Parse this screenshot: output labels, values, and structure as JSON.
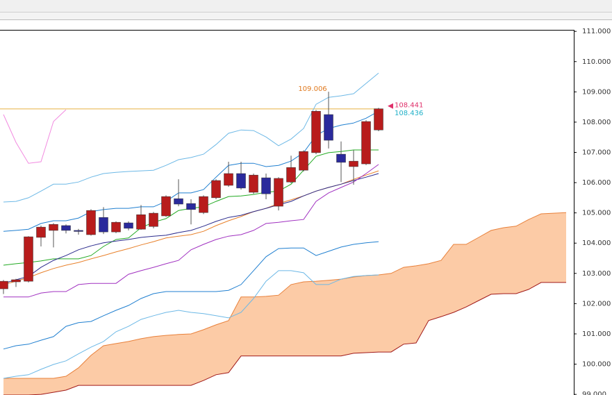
{
  "chart_data": {
    "type": "candlestick",
    "ylim": [
      98.98,
      111.05
    ],
    "yticks": [
      {
        "value": 99,
        "label": "99.000"
      },
      {
        "value": 100,
        "label": "100.000"
      },
      {
        "value": 101,
        "label": "101.000"
      },
      {
        "value": 102,
        "label": "102.000"
      },
      {
        "value": 103,
        "label": "103.000"
      },
      {
        "value": 104,
        "label": "104.000"
      },
      {
        "value": 105,
        "label": "105.000"
      },
      {
        "value": 106,
        "label": "106.000"
      },
      {
        "value": 107,
        "label": "107.000"
      },
      {
        "value": 108,
        "label": "108.000"
      },
      {
        "value": 109,
        "label": "109.000"
      },
      {
        "value": 110,
        "label": "110.000"
      },
      {
        "value": 111,
        "label": "111.000"
      }
    ],
    "up_color": "#b81c1c",
    "down_color": "#2a2a9c",
    "open": [
      102.49,
      102.72,
      102.74,
      104.19,
      104.42,
      104.58,
      104.42,
      104.28,
      104.85,
      104.37,
      104.67,
      104.46,
      104.55,
      104.9,
      105.47,
      105.31,
      105.01,
      105.5,
      105.91,
      106.3,
      105.68,
      106.16,
      105.22,
      106.02,
      106.41,
      106.99,
      108.25,
      106.94,
      106.53,
      106.62,
      107.74
    ],
    "high": [
      102.78,
      102.82,
      104.23,
      104.58,
      104.66,
      104.62,
      104.47,
      105.12,
      105.19,
      104.72,
      104.72,
      105.26,
      105.03,
      105.58,
      106.11,
      105.45,
      105.58,
      106.11,
      106.69,
      106.69,
      106.3,
      106.3,
      106.18,
      106.89,
      107.07,
      108.4,
      109.006,
      107.36,
      107.07,
      108.06,
      108.47
    ],
    "low": [
      102.32,
      102.55,
      102.7,
      103.89,
      103.86,
      104.32,
      104.28,
      104.25,
      104.3,
      104.33,
      104.42,
      104.44,
      104.49,
      104.87,
      105.22,
      104.62,
      104.96,
      105.45,
      105.86,
      105.77,
      105.63,
      105.45,
      105.08,
      105.98,
      106.37,
      106.94,
      107.13,
      106.02,
      105.93,
      106.58,
      107.7
    ],
    "close": [
      102.74,
      102.79,
      104.21,
      104.53,
      104.62,
      104.42,
      104.4,
      105.08,
      104.37,
      104.69,
      104.49,
      104.94,
      104.99,
      105.54,
      105.29,
      105.11,
      105.54,
      106.07,
      106.3,
      105.82,
      106.25,
      105.63,
      106.14,
      106.5,
      107.03,
      108.36,
      107.4,
      106.67,
      106.71,
      108.02,
      108.441
    ],
    "cloud": {
      "fill": "#fccba6",
      "upper_color": "#e8803a",
      "lower_color": "#a01818",
      "upper": [
        99.53,
        99.53,
        99.53,
        99.53,
        99.53,
        99.6,
        99.88,
        100.29,
        100.61,
        100.68,
        100.75,
        100.84,
        100.91,
        100.95,
        100.98,
        101.0,
        101.14,
        101.3,
        101.44,
        102.22,
        102.22,
        102.24,
        102.28,
        102.63,
        102.72,
        102.74,
        102.77,
        102.81,
        102.88,
        102.93,
        102.95,
        103.0,
        103.2,
        103.25,
        103.32,
        103.43,
        103.96,
        103.96,
        104.19,
        104.42,
        104.51,
        104.56,
        104.78,
        104.97,
        104.99,
        105.01
      ],
      "lower": [
        98.98,
        98.98,
        98.98,
        99.0,
        99.07,
        99.14,
        99.3,
        99.3,
        99.3,
        99.3,
        99.3,
        99.3,
        99.3,
        99.3,
        99.3,
        99.3,
        99.46,
        99.65,
        99.72,
        100.27,
        100.27,
        100.27,
        100.27,
        100.27,
        100.27,
        100.27,
        100.27,
        100.27,
        100.36,
        100.38,
        100.4,
        100.4,
        100.66,
        100.7,
        101.44,
        101.57,
        101.71,
        101.89,
        102.1,
        102.31,
        102.33,
        102.33,
        102.47,
        102.7,
        102.7,
        102.7
      ]
    },
    "lines": [
      {
        "color": "#6cb8e6",
        "values": [
          105.36,
          105.38,
          105.5,
          105.72,
          105.95,
          105.95,
          106.02,
          106.18,
          106.3,
          106.34,
          106.37,
          106.39,
          106.41,
          106.57,
          106.76,
          106.83,
          106.94,
          107.26,
          107.63,
          107.74,
          107.72,
          107.51,
          107.22,
          107.44,
          107.79,
          108.59,
          108.82,
          108.87,
          108.94,
          109.28,
          109.62
        ]
      },
      {
        "color": "#1f7fd0",
        "values": [
          104.39,
          104.42,
          104.46,
          104.65,
          104.74,
          104.74,
          104.83,
          105.04,
          105.11,
          105.15,
          105.15,
          105.2,
          105.2,
          105.38,
          105.66,
          105.66,
          105.77,
          106.18,
          106.57,
          106.64,
          106.64,
          106.53,
          106.57,
          106.71,
          106.99,
          107.56,
          107.79,
          107.9,
          107.97,
          108.13,
          108.36
        ]
      },
      {
        "color": "#1f7fd0",
        "values": [
          100.5,
          100.61,
          100.66,
          100.79,
          100.91,
          101.25,
          101.37,
          101.41,
          101.6,
          101.78,
          101.94,
          102.17,
          102.33,
          102.4,
          102.4,
          102.4,
          102.4,
          102.4,
          102.44,
          102.63,
          103.09,
          103.55,
          103.82,
          103.84,
          103.84,
          103.59,
          103.73,
          103.87,
          103.96,
          104.01,
          104.05
        ]
      },
      {
        "color": "#6cb8e6",
        "values": [
          99.53,
          99.6,
          99.65,
          99.83,
          99.99,
          100.11,
          100.34,
          100.56,
          100.75,
          101.07,
          101.25,
          101.48,
          101.6,
          101.71,
          101.78,
          101.71,
          101.67,
          101.6,
          101.53,
          101.71,
          102.17,
          102.74,
          103.09,
          103.09,
          103.02,
          102.63,
          102.63,
          102.81,
          102.9,
          102.93,
          102.95
        ]
      },
      {
        "color": "#22aa22",
        "values": [
          103.27,
          103.32,
          103.36,
          103.41,
          103.48,
          103.48,
          103.48,
          103.59,
          103.89,
          104.12,
          104.17,
          104.51,
          104.69,
          104.81,
          105.08,
          105.15,
          105.2,
          105.38,
          105.54,
          105.56,
          105.61,
          105.68,
          105.72,
          105.95,
          106.41,
          106.87,
          106.99,
          107.03,
          107.08,
          107.08,
          107.08
        ]
      },
      {
        "color": "#e8802a",
        "values": [
          102.63,
          102.74,
          102.86,
          103.02,
          103.16,
          103.27,
          103.36,
          103.48,
          103.59,
          103.71,
          103.82,
          103.94,
          104.05,
          104.17,
          104.23,
          104.28,
          104.39,
          104.58,
          104.74,
          104.88,
          105.04,
          105.15,
          105.31,
          105.43,
          105.56,
          105.72,
          105.84,
          105.95,
          106.11,
          106.25,
          106.39
        ]
      },
      {
        "color": "#2a2a8c",
        "values": [
          102.67,
          102.79,
          102.9,
          103.2,
          103.43,
          103.59,
          103.78,
          103.91,
          104.01,
          104.07,
          104.12,
          104.19,
          104.23,
          104.26,
          104.35,
          104.42,
          104.56,
          104.72,
          104.85,
          104.92,
          105.04,
          105.15,
          105.27,
          105.38,
          105.56,
          105.72,
          105.84,
          105.95,
          106.07,
          106.18,
          106.3
        ]
      },
      {
        "color": "#a030c0",
        "values": [
          102.22,
          102.22,
          102.22,
          102.35,
          102.4,
          102.4,
          102.63,
          102.67,
          102.67,
          102.67,
          102.97,
          103.09,
          103.2,
          103.32,
          103.43,
          103.78,
          103.96,
          104.12,
          104.23,
          104.28,
          104.42,
          104.65,
          104.69,
          104.74,
          104.78,
          105.38,
          105.66,
          105.84,
          106.02,
          106.3,
          106.6
        ]
      },
      {
        "color": "#f28ae0",
        "values": [
          108.25,
          107.33,
          106.64,
          106.69,
          108.02,
          108.41,
          null,
          null,
          null,
          null,
          null,
          null,
          null,
          null,
          null,
          null,
          null,
          null,
          null,
          null,
          null,
          null,
          null,
          null,
          null,
          null,
          null,
          null,
          null,
          null,
          null
        ]
      }
    ],
    "high_label_color": "#e07a20",
    "last_label_color": "#e0306a",
    "bid": {
      "value": 108.436,
      "color": "#20b0c8",
      "line_color": "#e8b040"
    }
  }
}
